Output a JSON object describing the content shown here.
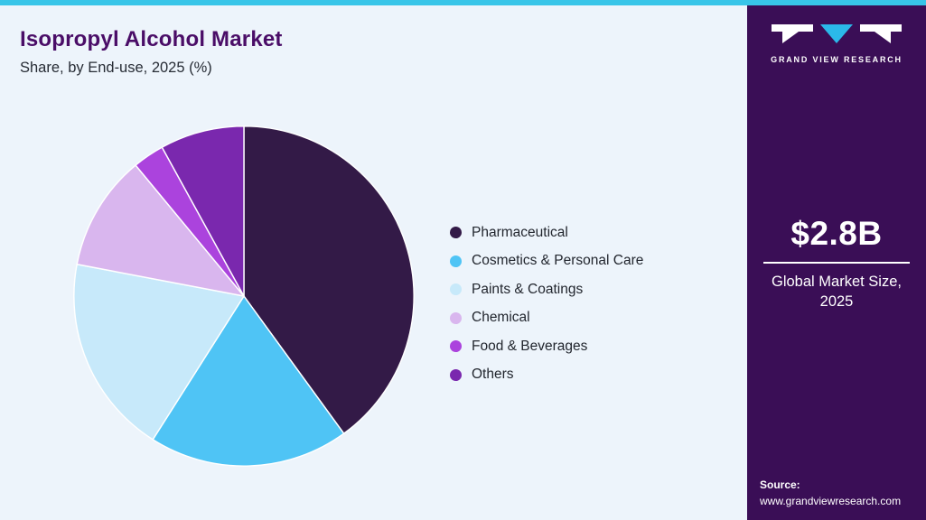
{
  "header": {
    "title": "Isopropyl Alcohol Market",
    "subtitle": "Share, by End-use, 2025 (%)"
  },
  "chart_data": {
    "type": "pie",
    "title": "Isopropyl Alcohol Market Share, by End-use, 2025 (%)",
    "unit": "%",
    "start_angle_deg": 0,
    "direction": "clockwise",
    "legend_position": "right",
    "slices": [
      {
        "label": "Pharmaceutical",
        "value": 40,
        "color": "#331a47"
      },
      {
        "label": "Cosmetics & Personal Care",
        "value": 19,
        "color": "#4fc4f5"
      },
      {
        "label": "Paints & Coatings",
        "value": 19,
        "color": "#c7e9fa"
      },
      {
        "label": "Chemical",
        "value": 11,
        "color": "#d9b6ee"
      },
      {
        "label": "Food & Beverages",
        "value": 3,
        "color": "#ab43dd"
      },
      {
        "label": "Others",
        "value": 8,
        "color": "#7a28ae"
      }
    ]
  },
  "sidebar": {
    "brand_name": "GRAND VIEW RESEARCH",
    "market_size_value": "$2.8B",
    "market_size_label": "Global Market Size,\n2025",
    "source_label": "Source:",
    "source_url": "www.grandviewresearch.com"
  },
  "theme": {
    "top_bar_color": "#38c5e8",
    "background_color": "#edf4fb",
    "title_color": "#4a0d67",
    "sidebar_background": "#3a0e56",
    "logo_triangle_color": "#2bb9e9",
    "legend_text_color": "#22262e"
  }
}
